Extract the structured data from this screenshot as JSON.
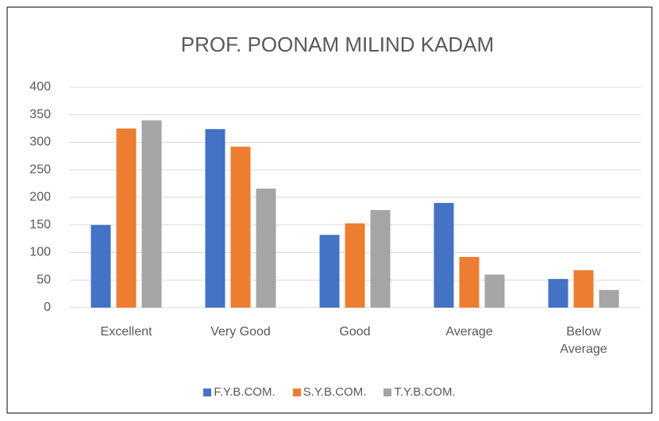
{
  "chart_data": {
    "type": "bar",
    "title": "PROF. POONAM MILIND KADAM",
    "categories": [
      "Excellent",
      "Very Good",
      "Good",
      "Average",
      "Below Average"
    ],
    "series": [
      {
        "name": "F.Y.B.COM.",
        "color": "#4472c4",
        "values": [
          150,
          324,
          132,
          190,
          52
        ]
      },
      {
        "name": "S.Y.B.COM.",
        "color": "#ed7d31",
        "values": [
          325,
          292,
          153,
          92,
          68
        ]
      },
      {
        "name": "T.Y.B.COM.",
        "color": "#a5a5a5",
        "values": [
          340,
          216,
          177,
          60,
          32
        ]
      }
    ],
    "ylim": [
      0,
      400
    ],
    "yticks": [
      0,
      50,
      100,
      150,
      200,
      250,
      300,
      350,
      400
    ],
    "grid": true,
    "legend": "bottom"
  }
}
